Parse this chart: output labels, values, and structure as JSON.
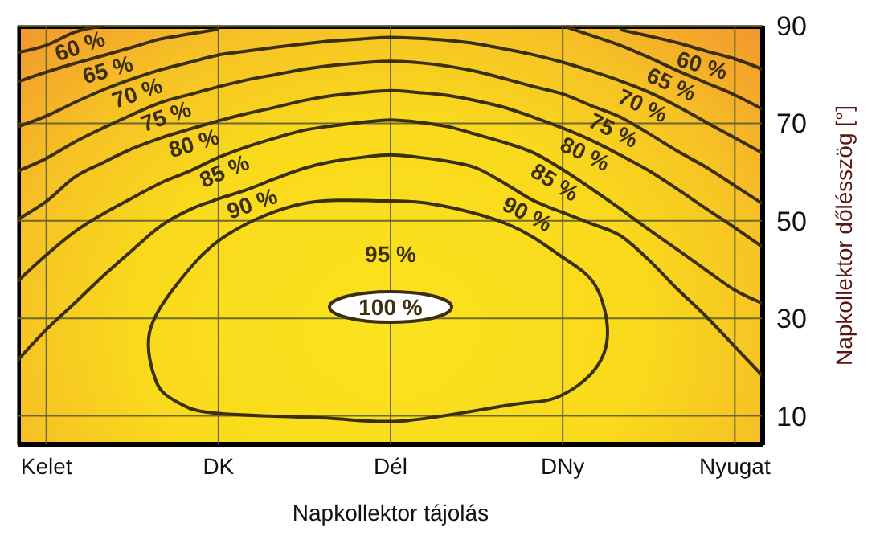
{
  "chart_data": {
    "type": "line",
    "xlabel": "Napkollektor tájolás",
    "ylabel": "Napkollektor dőlésszög [°]",
    "categories": [
      null,
      "Kelet",
      null,
      null,
      null,
      null,
      null,
      "DK",
      null,
      null,
      null,
      null,
      null,
      "Dél",
      null,
      null,
      null,
      null,
      null,
      "DNy",
      null,
      null,
      null,
      null,
      null,
      "Nyugat",
      null
    ],
    "ylim": [
      4,
      90
    ],
    "yticks": [
      10,
      30,
      50,
      70,
      90
    ],
    "grid": true,
    "annotations": [
      "95 %",
      "100 %"
    ],
    "series": [
      {
        "name": "60 %",
        "color": "#3b2f10",
        "values": [
          84.5,
          86,
          88.7,
          90,
          null,
          null,
          null,
          null,
          null,
          null,
          null,
          null,
          null,
          null,
          null,
          null,
          null,
          null,
          null,
          null,
          null,
          89.2,
          87.9,
          86.5,
          84.8,
          83.2,
          81
        ]
      },
      {
        "name": "65 %",
        "color": "#3b2f10",
        "values": [
          78.5,
          80.5,
          82.3,
          83.9,
          85.6,
          87.3,
          88.3,
          89.3,
          null,
          null,
          null,
          null,
          null,
          null,
          null,
          null,
          null,
          null,
          null,
          90,
          88,
          86,
          83.5,
          80.8,
          78.3,
          75.8,
          72.8
        ]
      },
      {
        "name": "70 %",
        "color": "#3b2f10",
        "values": [
          69.3,
          71.5,
          74.3,
          76.9,
          79.1,
          81,
          82.5,
          84,
          84.8,
          85.6,
          86.3,
          86.9,
          87.3,
          87.6,
          87.4,
          87,
          86.3,
          85.2,
          84,
          82.5,
          80.7,
          78.7,
          76.4,
          73.5,
          70.2,
          67,
          63.8
        ]
      },
      {
        "name": "75 %",
        "color": "#3b2f10",
        "values": [
          60.2,
          62.8,
          66.2,
          69.1,
          71.8,
          74.3,
          75.9,
          77.5,
          78.9,
          80,
          81.1,
          81.9,
          82.4,
          82.7,
          82.4,
          81.7,
          80.6,
          79.1,
          77.5,
          76,
          73.6,
          71.3,
          67.9,
          64.3,
          61,
          57.2,
          53.4
        ]
      },
      {
        "name": "80 %",
        "color": "#3b2f10",
        "values": [
          50.3,
          54,
          59,
          62,
          64.8,
          67,
          68.8,
          70.5,
          72,
          73.3,
          74.7,
          75.7,
          76.3,
          76.7,
          76.3,
          75.7,
          74.6,
          73.2,
          71.2,
          69,
          66.5,
          63.5,
          60.3,
          56.5,
          52.5,
          48.6,
          44.5
        ]
      },
      {
        "name": "85 %",
        "color": "#3b2f10",
        "values": [
          37.6,
          43,
          47.8,
          51.5,
          54.7,
          57.8,
          60.2,
          63,
          65.2,
          67,
          68.6,
          69.5,
          70.2,
          70.7,
          70.2,
          69.3,
          67.7,
          66,
          63.9,
          60.5,
          56.6,
          52.5,
          48.2,
          44.1,
          39.9,
          35.8,
          33
        ]
      },
      {
        "name": "90 %",
        "color": "#3b2f10",
        "values": [
          21.4,
          27.7,
          33.2,
          38.8,
          44,
          49,
          52.3,
          54.5,
          56.4,
          58.7,
          60.8,
          62.2,
          63,
          63.5,
          63,
          62.2,
          60.8,
          57.6,
          54.1,
          51.7,
          49.4,
          47,
          42,
          36,
          30.4,
          24.2,
          18
        ]
      }
    ]
  }
}
